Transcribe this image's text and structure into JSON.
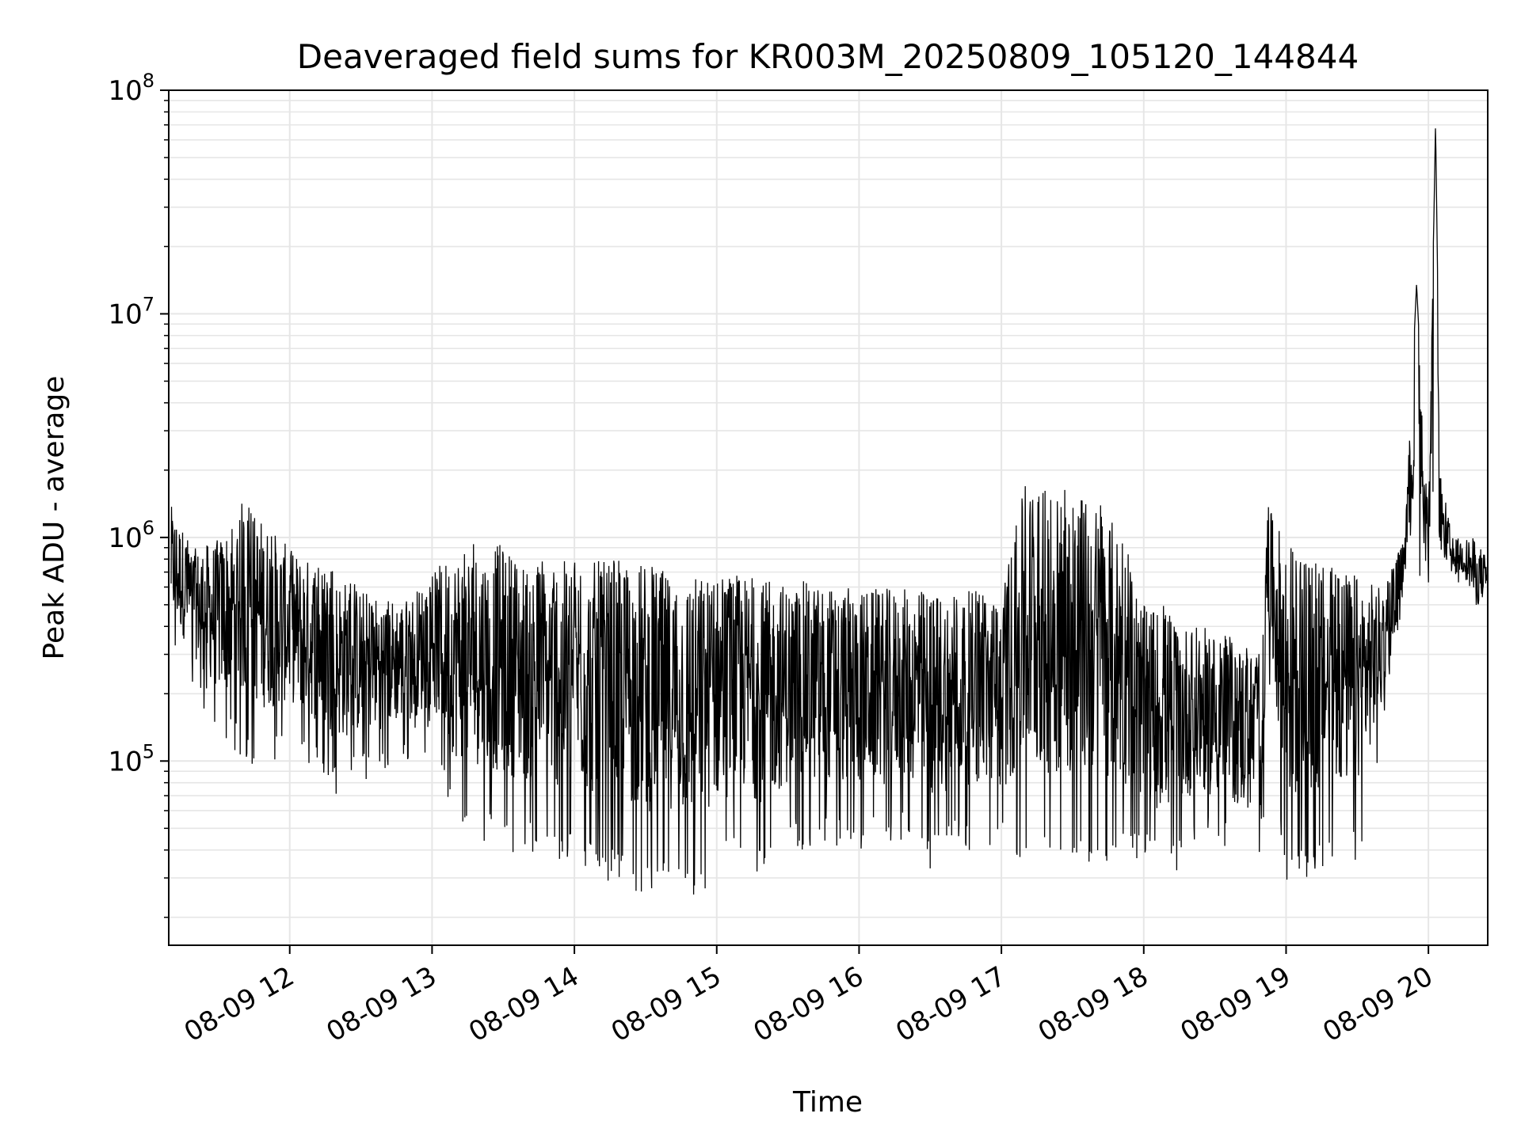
{
  "chart_data": {
    "type": "line",
    "title": "Deaveraged field sums for KR003M_20250809_105120_144844",
    "xlabel": "Time",
    "ylabel": "Peak ADU - average",
    "y_scale": "log",
    "ylim": [
      15000,
      100000000
    ],
    "xlim": [
      "2025-08-09 11:09",
      "2025-08-09 20:25"
    ],
    "x_ticks": [
      "08-09 12",
      "08-09 13",
      "08-09 14",
      "08-09 15",
      "08-09 16",
      "08-09 17",
      "08-09 18",
      "08-09 19",
      "08-09 20"
    ],
    "y_ticks": [
      {
        "base": "10",
        "exp": "5",
        "value": 100000
      },
      {
        "base": "10",
        "exp": "6",
        "value": 1000000
      },
      {
        "base": "10",
        "exp": "7",
        "value": 10000000
      },
      {
        "base": "10",
        "exp": "8",
        "value": 100000000
      }
    ],
    "grid": true,
    "line_color": "#000000",
    "grid_color": "#e6e6e6",
    "series": [
      {
        "x": [
          "2025-08-09 11:10",
          "2025-08-09 11:20",
          "2025-08-09 11:30",
          "2025-08-09 11:40",
          "2025-08-09 11:50",
          "2025-08-09 12:00",
          "2025-08-09 12:10",
          "2025-08-09 12:20",
          "2025-08-09 12:30",
          "2025-08-09 12:40",
          "2025-08-09 12:50",
          "2025-08-09 13:00",
          "2025-08-09 13:10",
          "2025-08-09 13:20",
          "2025-08-09 13:30",
          "2025-08-09 13:40",
          "2025-08-09 13:50",
          "2025-08-09 14:00",
          "2025-08-09 14:10",
          "2025-08-09 14:20",
          "2025-08-09 14:30",
          "2025-08-09 14:40",
          "2025-08-09 14:50",
          "2025-08-09 15:00",
          "2025-08-09 15:10",
          "2025-08-09 15:20",
          "2025-08-09 15:30",
          "2025-08-09 15:40",
          "2025-08-09 15:50",
          "2025-08-09 16:00",
          "2025-08-09 16:10",
          "2025-08-09 16:20",
          "2025-08-09 16:30",
          "2025-08-09 16:40",
          "2025-08-09 16:50",
          "2025-08-09 17:00",
          "2025-08-09 17:10",
          "2025-08-09 17:20",
          "2025-08-09 17:30",
          "2025-08-09 17:40",
          "2025-08-09 17:50",
          "2025-08-09 18:00",
          "2025-08-09 18:10",
          "2025-08-09 18:20",
          "2025-08-09 18:30",
          "2025-08-09 18:40",
          "2025-08-09 18:50",
          "2025-08-09 18:52",
          "2025-08-09 19:00",
          "2025-08-09 19:10",
          "2025-08-09 19:20",
          "2025-08-09 19:30",
          "2025-08-09 19:40",
          "2025-08-09 19:50",
          "2025-08-09 19:55",
          "2025-08-09 20:00",
          "2025-08-09 20:03",
          "2025-08-09 20:05",
          "2025-08-09 20:10",
          "2025-08-09 20:15",
          "2025-08-09 20:20",
          "2025-08-09 20:25"
        ],
        "upper": [
          1400000,
          900000,
          1000000,
          1500000,
          1200000,
          900000,
          800000,
          700000,
          600000,
          550000,
          550000,
          700000,
          900000,
          950000,
          950000,
          800000,
          800000,
          800000,
          800000,
          800000,
          800000,
          700000,
          700000,
          700000,
          700000,
          650000,
          650000,
          650000,
          620000,
          600000,
          600000,
          600000,
          600000,
          600000,
          580000,
          550000,
          1800000,
          1700000,
          1600000,
          1500000,
          1100000,
          500000,
          500000,
          400000,
          400000,
          350000,
          300000,
          1400000,
          1000000,
          800000,
          750000,
          700000,
          600000,
          1000000,
          13500000,
          1200000,
          70000000,
          2000000,
          1000000,
          1000000,
          1000000,
          800000
        ],
        "lower": [
          300000,
          200000,
          120000,
          100000,
          90000,
          110000,
          90000,
          70000,
          80000,
          90000,
          100000,
          110000,
          50000,
          45000,
          40000,
          38000,
          35000,
          35000,
          30000,
          28000,
          25000,
          28000,
          22000,
          30000,
          35000,
          30000,
          40000,
          40000,
          40000,
          40000,
          40000,
          45000,
          32000,
          40000,
          40000,
          38000,
          35000,
          33000,
          33000,
          35000,
          35000,
          35000,
          28000,
          40000,
          40000,
          35000,
          30000,
          280000,
          25000,
          30000,
          35000,
          35000,
          110000,
          600000,
          700000,
          600000,
          600000,
          650000,
          600000,
          600000,
          380000,
          500000
        ]
      }
    ]
  }
}
